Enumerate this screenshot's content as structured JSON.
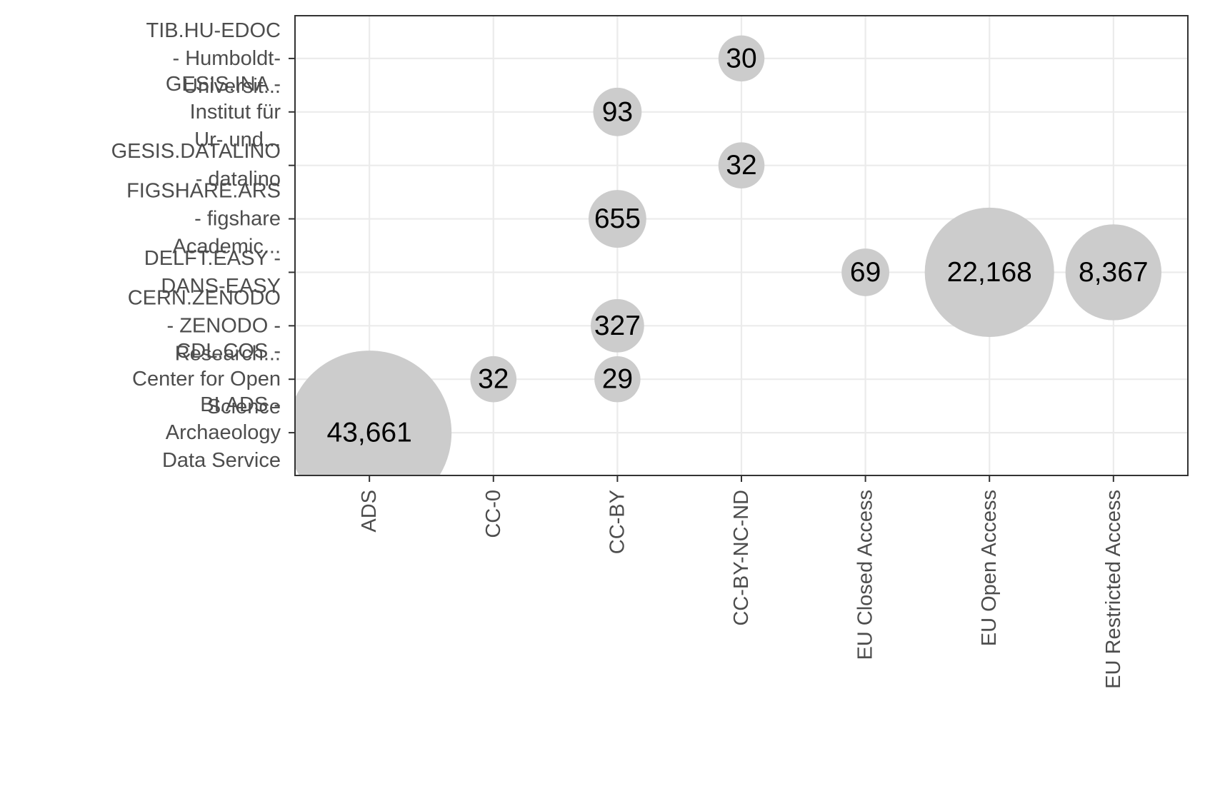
{
  "chart_data": {
    "type": "scatter",
    "subtype": "bubble",
    "title": "",
    "xlabel": "",
    "ylabel": "",
    "x_categories": [
      "ADS",
      "CC-0",
      "CC-BY",
      "CC-BY-NC-ND",
      "EU Closed Access",
      "EU Open Access",
      "EU Restricted Access"
    ],
    "y_categories": [
      [
        "BI.ADS -",
        "Archaeology",
        "Data Service"
      ],
      [
        "CDL.COS -",
        "Center for Open",
        "Science"
      ],
      [
        "CERN.ZENODO",
        "- ZENODO -",
        "Research..."
      ],
      [
        "DELFT.EASY -",
        "DANS-EASY"
      ],
      [
        "FIGSHARE.ARS",
        "- figshare",
        "Academic..."
      ],
      [
        "GESIS.DATALINO",
        "- datalino"
      ],
      [
        "GESIS.INA -",
        "Institut für",
        "Ur- und..."
      ],
      [
        "TIB.HU-EDOC",
        "- Humboldt-",
        "Universit..."
      ]
    ],
    "points": [
      {
        "x": "ADS",
        "y": 0,
        "value": 43661,
        "label": "43,661"
      },
      {
        "x": "CC-0",
        "y": 1,
        "value": 32,
        "label": "32"
      },
      {
        "x": "CC-BY",
        "y": 1,
        "value": 29,
        "label": "29"
      },
      {
        "x": "CC-BY",
        "y": 2,
        "value": 327,
        "label": "327"
      },
      {
        "x": "EU Closed Access",
        "y": 3,
        "value": 69,
        "label": "69"
      },
      {
        "x": "EU Open Access",
        "y": 3,
        "value": 22168,
        "label": "22,168"
      },
      {
        "x": "EU Restricted Access",
        "y": 3,
        "value": 8367,
        "label": "8,367"
      },
      {
        "x": "CC-BY",
        "y": 4,
        "value": 655,
        "label": "655"
      },
      {
        "x": "CC-BY-NC-ND",
        "y": 5,
        "value": 32,
        "label": "32"
      },
      {
        "x": "CC-BY",
        "y": 6,
        "value": 93,
        "label": "93"
      },
      {
        "x": "CC-BY-NC-ND",
        "y": 7,
        "value": 30,
        "label": "30"
      }
    ],
    "grid": true,
    "legend": "none",
    "colors": {
      "bubble": "#cccccc",
      "grid": "#ebebeb",
      "axis": "#333333",
      "tick_text": "#4d4d4d",
      "label_text": "#000000"
    }
  }
}
